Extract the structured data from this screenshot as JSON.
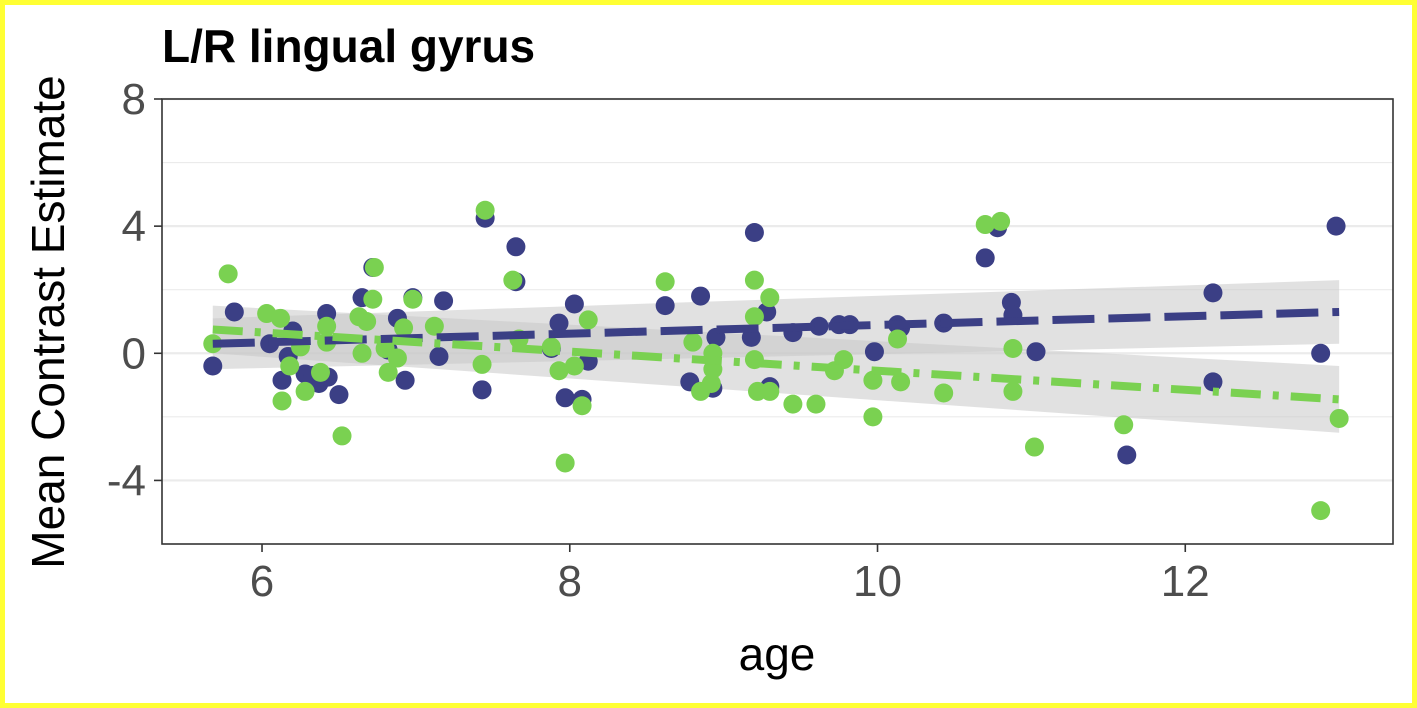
{
  "chart_data": {
    "type": "scatter",
    "title": "L/R lingual gyrus",
    "xlabel": "age",
    "ylabel": "Mean Contrast Estimate",
    "xlim": [
      5.35,
      13.35
    ],
    "ylim": [
      -6.0,
      8.0
    ],
    "x_ticks": [
      6,
      8,
      10,
      12
    ],
    "y_ticks": [
      -4,
      0,
      4,
      8
    ],
    "x_tick_labels": [
      "6",
      "8",
      "10",
      "12"
    ],
    "y_tick_labels": [
      "-4",
      "0",
      "4",
      "8"
    ],
    "grid": true,
    "legend": "none",
    "colors": {
      "series_1": "#3b3f85",
      "series_2": "#7ad151",
      "ribbon": "#c8c8c8",
      "panel_border": "#333333",
      "grid": "#ebebeb",
      "frame": "#ffff33"
    },
    "series": [
      {
        "color": "#3b3f85",
        "line_style": "dashed",
        "trend": {
          "x": [
            5.68,
            13.0
          ],
          "y": [
            0.3,
            1.3
          ],
          "ci_low": [
            -0.5,
            0.3
          ],
          "ci_high": [
            1.1,
            2.3
          ]
        },
        "points": [
          [
            5.68,
            -0.4
          ],
          [
            5.82,
            1.3
          ],
          [
            6.05,
            0.3
          ],
          [
            6.13,
            -0.85
          ],
          [
            6.17,
            -0.1
          ],
          [
            6.2,
            0.7
          ],
          [
            6.28,
            -0.65
          ],
          [
            6.33,
            -0.7
          ],
          [
            6.37,
            -0.95
          ],
          [
            6.42,
            1.25
          ],
          [
            6.43,
            -0.75
          ],
          [
            6.5,
            -1.3
          ],
          [
            6.65,
            1.75
          ],
          [
            6.72,
            2.7
          ],
          [
            6.82,
            0.1
          ],
          [
            6.88,
            1.1
          ],
          [
            6.93,
            -0.85
          ],
          [
            6.98,
            1.75
          ],
          [
            7.18,
            1.65
          ],
          [
            7.15,
            -0.1
          ],
          [
            7.43,
            -1.15
          ],
          [
            7.45,
            4.25
          ],
          [
            7.65,
            3.35
          ],
          [
            7.65,
            2.25
          ],
          [
            7.88,
            0.15
          ],
          [
            7.93,
            0.95
          ],
          [
            7.97,
            -1.4
          ],
          [
            8.03,
            1.55
          ],
          [
            8.08,
            -1.45
          ],
          [
            8.12,
            -0.25
          ],
          [
            8.62,
            1.5
          ],
          [
            8.78,
            -0.9
          ],
          [
            8.85,
            1.8
          ],
          [
            8.93,
            -1.1
          ],
          [
            8.95,
            0.5
          ],
          [
            9.18,
            0.5
          ],
          [
            9.2,
            3.8
          ],
          [
            9.28,
            1.3
          ],
          [
            9.3,
            -1.05
          ],
          [
            9.45,
            0.65
          ],
          [
            9.62,
            0.85
          ],
          [
            9.75,
            0.9
          ],
          [
            9.82,
            0.9
          ],
          [
            9.98,
            0.05
          ],
          [
            10.13,
            0.9
          ],
          [
            10.15,
            0.8
          ],
          [
            10.43,
            0.95
          ],
          [
            10.7,
            3.0
          ],
          [
            10.78,
            3.95
          ],
          [
            10.87,
            1.6
          ],
          [
            10.88,
            1.2
          ],
          [
            11.03,
            0.05
          ],
          [
            11.62,
            -3.2
          ],
          [
            12.18,
            1.9
          ],
          [
            12.18,
            -0.9
          ],
          [
            12.88,
            0.0
          ],
          [
            12.98,
            4.0
          ]
        ]
      },
      {
        "color": "#7ad151",
        "line_style": "dotdash",
        "trend": {
          "x": [
            5.68,
            13.0
          ],
          "y": [
            0.75,
            -1.45
          ],
          "ci_low": [
            0.0,
            -2.5
          ],
          "ci_high": [
            1.5,
            -0.4
          ]
        },
        "points": [
          [
            5.68,
            0.3
          ],
          [
            5.78,
            2.5
          ],
          [
            6.03,
            1.25
          ],
          [
            6.12,
            1.1
          ],
          [
            6.13,
            -1.5
          ],
          [
            6.18,
            -0.4
          ],
          [
            6.25,
            0.2
          ],
          [
            6.28,
            -1.2
          ],
          [
            6.38,
            -0.6
          ],
          [
            6.42,
            0.85
          ],
          [
            6.42,
            0.35
          ],
          [
            6.52,
            -2.6
          ],
          [
            6.63,
            1.15
          ],
          [
            6.65,
            0.0
          ],
          [
            6.68,
            1.0
          ],
          [
            6.72,
            1.7
          ],
          [
            6.73,
            2.7
          ],
          [
            6.8,
            0.15
          ],
          [
            6.82,
            -0.6
          ],
          [
            6.88,
            -0.15
          ],
          [
            6.92,
            0.8
          ],
          [
            6.98,
            1.7
          ],
          [
            7.12,
            0.85
          ],
          [
            7.45,
            4.5
          ],
          [
            7.43,
            -0.35
          ],
          [
            7.63,
            2.3
          ],
          [
            7.67,
            0.45
          ],
          [
            7.88,
            0.2
          ],
          [
            7.93,
            -0.55
          ],
          [
            7.97,
            -3.45
          ],
          [
            8.03,
            -0.4
          ],
          [
            8.08,
            -1.65
          ],
          [
            8.12,
            1.05
          ],
          [
            8.62,
            2.25
          ],
          [
            8.8,
            0.35
          ],
          [
            8.85,
            -1.2
          ],
          [
            8.92,
            -0.95
          ],
          [
            8.93,
            0.0
          ],
          [
            8.93,
            -0.5
          ],
          [
            9.2,
            2.3
          ],
          [
            9.2,
            1.15
          ],
          [
            9.2,
            -0.2
          ],
          [
            9.22,
            -1.2
          ],
          [
            9.3,
            1.75
          ],
          [
            9.3,
            -1.2
          ],
          [
            9.45,
            -1.6
          ],
          [
            9.6,
            -1.6
          ],
          [
            9.72,
            -0.55
          ],
          [
            9.78,
            -0.2
          ],
          [
            9.97,
            -0.85
          ],
          [
            9.97,
            -2.0
          ],
          [
            10.13,
            0.45
          ],
          [
            10.15,
            -0.9
          ],
          [
            10.43,
            -1.25
          ],
          [
            10.7,
            4.05
          ],
          [
            10.8,
            4.15
          ],
          [
            10.88,
            0.15
          ],
          [
            10.88,
            -1.2
          ],
          [
            11.02,
            -2.95
          ],
          [
            11.6,
            -2.25
          ],
          [
            12.88,
            -4.95
          ],
          [
            13.0,
            -2.05
          ]
        ]
      }
    ]
  }
}
